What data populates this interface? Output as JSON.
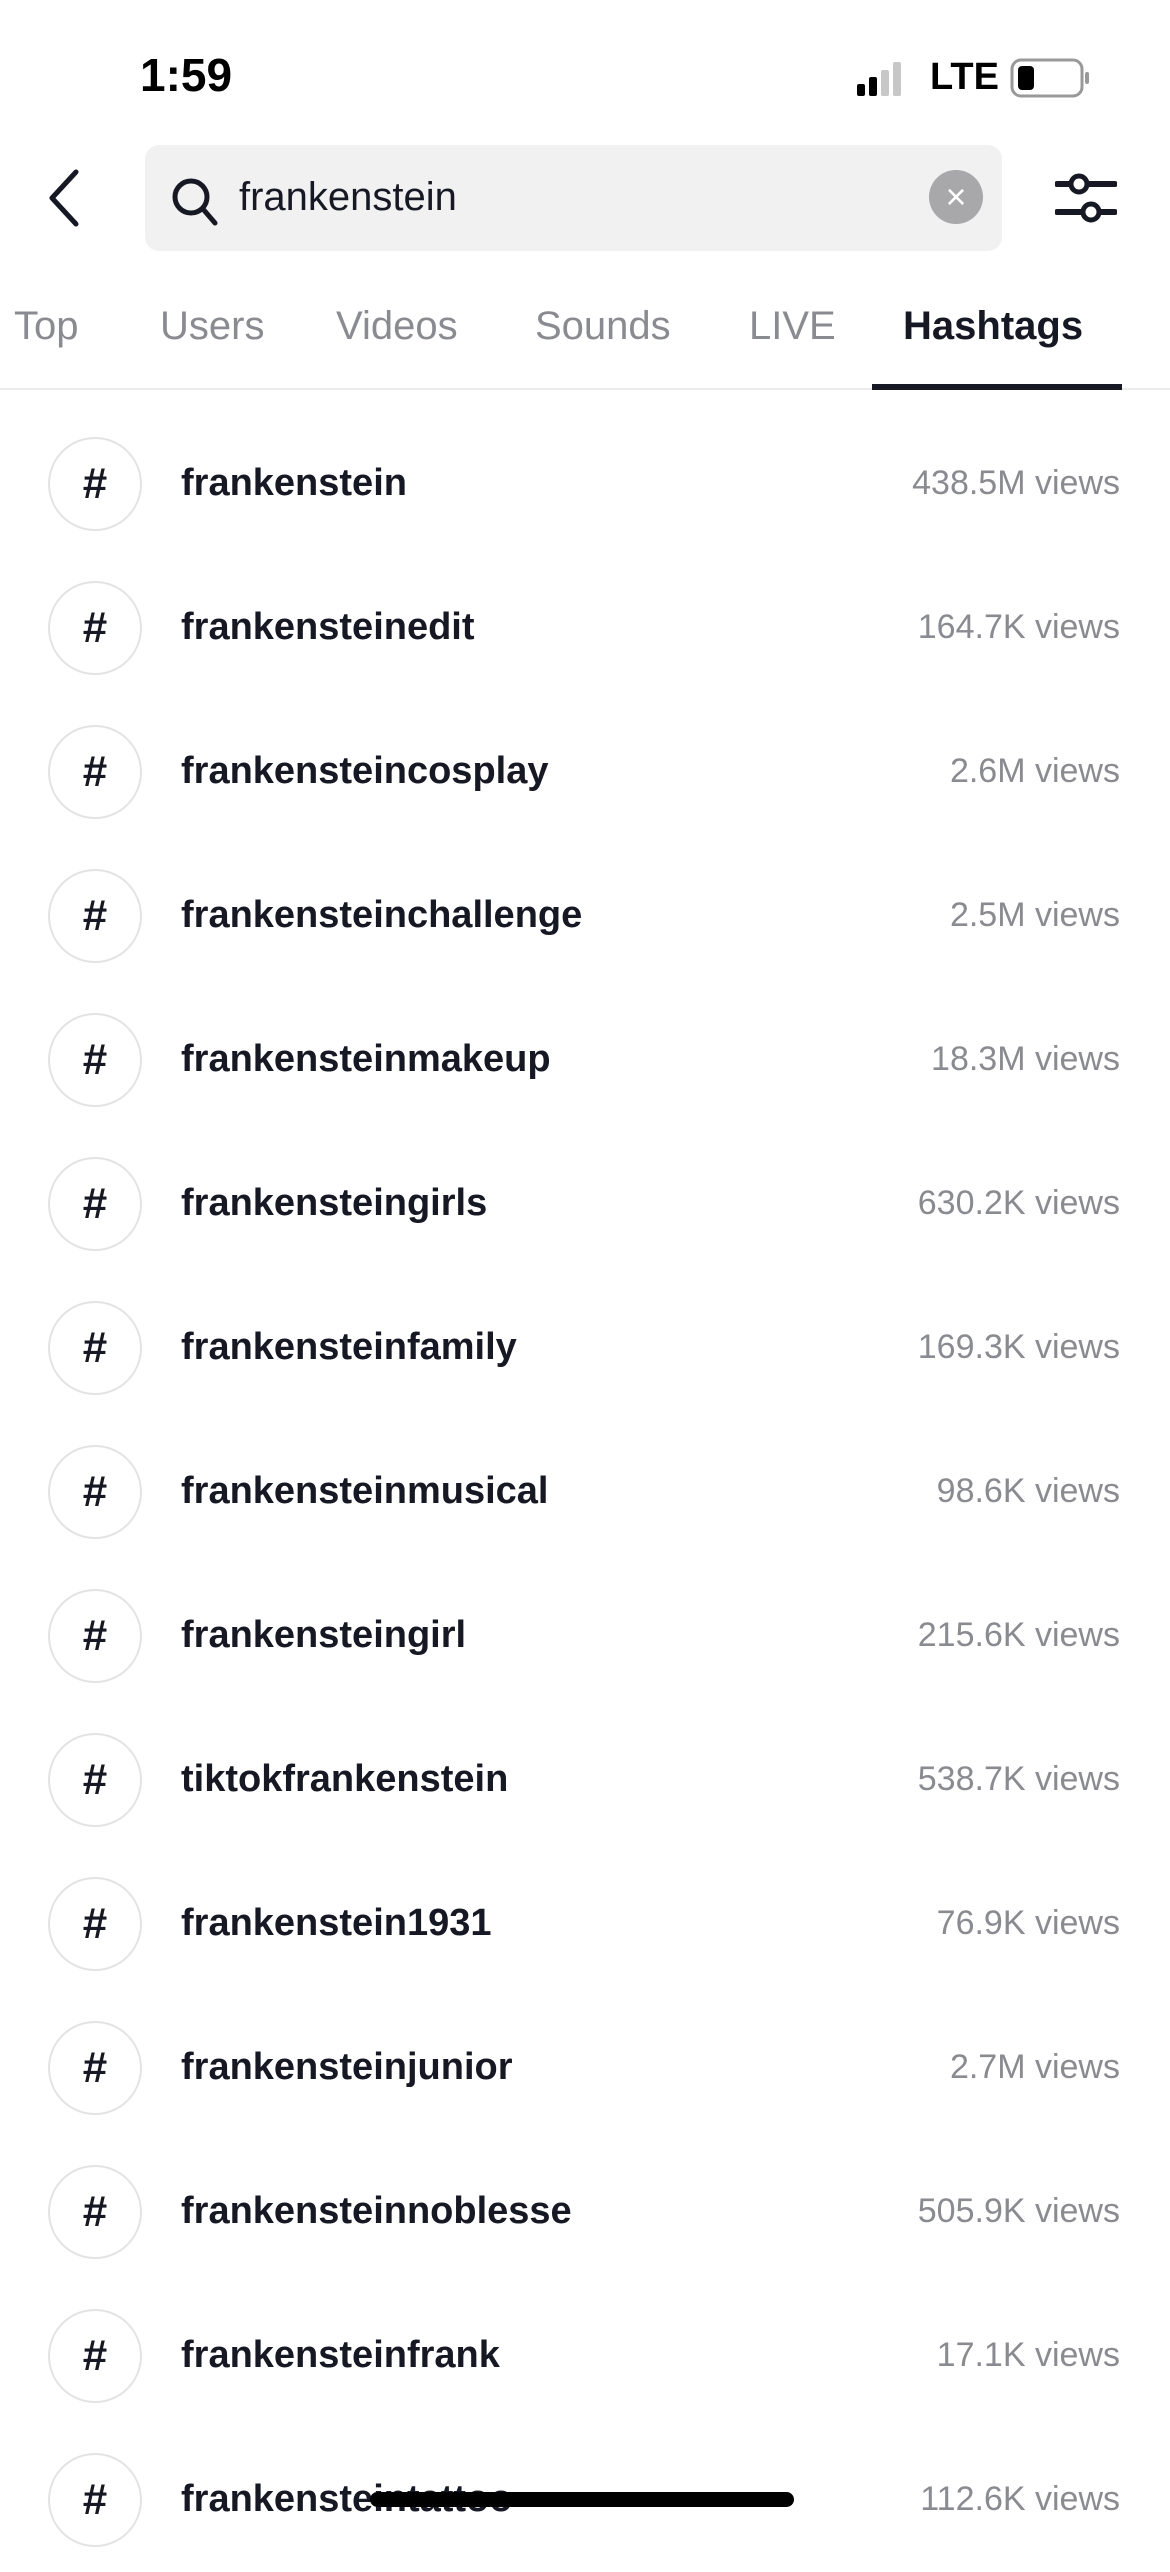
{
  "status_bar": {
    "time": "1:59",
    "network": "LTE",
    "signal_bars": 2,
    "battery_level": 0.25
  },
  "search": {
    "query": "frankenstein",
    "icon": "search-icon",
    "clear_icon": "close-icon",
    "clear_glyph": "×"
  },
  "tabs": [
    {
      "label": "Top"
    },
    {
      "label": "Users"
    },
    {
      "label": "Videos"
    },
    {
      "label": "Sounds"
    },
    {
      "label": "LIVE"
    },
    {
      "label": "Hashtags",
      "active": true
    }
  ],
  "hashtag_glyph": "#",
  "results": [
    {
      "name": "frankenstein",
      "views": "438.5M views"
    },
    {
      "name": "frankensteinedit",
      "views": "164.7K views"
    },
    {
      "name": "frankensteincosplay",
      "views": "2.6M views"
    },
    {
      "name": "frankensteinchallenge",
      "views": "2.5M views"
    },
    {
      "name": "frankensteinmakeup",
      "views": "18.3M views"
    },
    {
      "name": "frankensteingirls",
      "views": "630.2K views"
    },
    {
      "name": "frankensteinfamily",
      "views": "169.3K views"
    },
    {
      "name": "frankensteinmusical",
      "views": "98.6K views"
    },
    {
      "name": "frankensteingirl",
      "views": "215.6K views"
    },
    {
      "name": "tiktokfrankenstein",
      "views": "538.7K views"
    },
    {
      "name": "frankenstein1931",
      "views": "76.9K views"
    },
    {
      "name": "frankensteinjunior",
      "views": "2.7M views"
    },
    {
      "name": "frankensteinnoblesse",
      "views": "505.9K views"
    },
    {
      "name": "frankensteinfrank",
      "views": "17.1K views"
    },
    {
      "name": "frankensteintattoo",
      "views": "112.6K views"
    }
  ]
}
